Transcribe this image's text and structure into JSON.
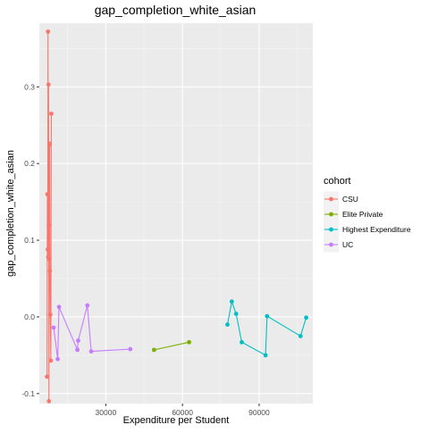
{
  "chart_data": {
    "type": "line",
    "title": "gap_completion_white_asian",
    "xlabel": "Expenditure per Student",
    "ylabel": "gap_completion_white_asian",
    "xlim": [
      4000,
      111000
    ],
    "ylim": [
      -0.113,
      0.383
    ],
    "x_ticks": [
      30000,
      60000,
      90000
    ],
    "x_tick_labels": [
      "30000",
      "60000",
      "90000"
    ],
    "y_ticks": [
      -0.1,
      0.0,
      0.1,
      0.2,
      0.3
    ],
    "y_tick_labels": [
      "-0.1",
      "0.0",
      "0.1",
      "0.2",
      "0.3"
    ],
    "grid": true,
    "legend": {
      "title": "cohort",
      "position": "right"
    },
    "series": [
      {
        "name": "CSU",
        "color": "#F8766D",
        "points": [
          [
            7000,
            -0.078
          ],
          [
            7150,
            0.16
          ],
          [
            7300,
            0.088
          ],
          [
            7400,
            0.372
          ],
          [
            7500,
            0.078
          ],
          [
            7600,
            0.303
          ],
          [
            7700,
            0.12
          ],
          [
            7750,
            -0.11
          ],
          [
            7850,
            0.075
          ],
          [
            7950,
            0.226
          ],
          [
            8050,
            0.225
          ],
          [
            8150,
            0.06
          ],
          [
            8300,
            0.003
          ],
          [
            8500,
            -0.057
          ],
          [
            8700,
            0.265
          ]
        ]
      },
      {
        "name": "Elite Private",
        "color": "#7CAE00",
        "points": [
          [
            48900,
            -0.043
          ],
          [
            62600,
            -0.033
          ]
        ]
      },
      {
        "name": "Highest Expenditure",
        "color": "#00BFC4",
        "points": [
          [
            77600,
            -0.01
          ],
          [
            79300,
            0.02
          ],
          [
            81000,
            0.004
          ],
          [
            83200,
            -0.033
          ],
          [
            92500,
            -0.05
          ],
          [
            93100,
            0.001
          ],
          [
            106200,
            -0.025
          ],
          [
            108400,
            -0.001
          ]
        ]
      },
      {
        "name": "UC",
        "color": "#C77CFF",
        "points": [
          [
            9600,
            -0.014
          ],
          [
            11200,
            -0.055
          ],
          [
            11700,
            0.013
          ],
          [
            18900,
            -0.043
          ],
          [
            19200,
            -0.031
          ],
          [
            22800,
            0.015
          ],
          [
            24300,
            -0.045
          ],
          [
            39600,
            -0.042
          ]
        ]
      }
    ]
  }
}
